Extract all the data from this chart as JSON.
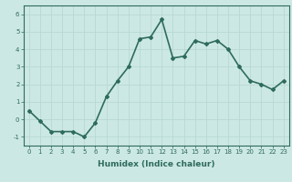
{
  "x": [
    0,
    1,
    2,
    3,
    4,
    5,
    6,
    7,
    8,
    9,
    10,
    11,
    12,
    13,
    14,
    15,
    16,
    17,
    18,
    19,
    20,
    21,
    22,
    23
  ],
  "y": [
    0.5,
    -0.1,
    -0.7,
    -0.7,
    -0.7,
    -1.0,
    -0.2,
    1.3,
    2.2,
    3.0,
    4.6,
    4.7,
    5.7,
    3.5,
    3.6,
    4.5,
    4.3,
    4.5,
    4.0,
    3.0,
    2.2,
    2.0,
    1.7,
    2.2
  ],
  "line_color": "#2e6b5e",
  "bg_color": "#cce8e4",
  "grid_color": "#b8d8d4",
  "xlabel": "Humidex (Indice chaleur)",
  "ylim": [
    -1.5,
    6.5
  ],
  "xlim": [
    -0.5,
    23.5
  ],
  "yticks": [
    -1,
    0,
    1,
    2,
    3,
    4,
    5,
    6
  ],
  "xticks": [
    0,
    1,
    2,
    3,
    4,
    5,
    6,
    7,
    8,
    9,
    10,
    11,
    12,
    13,
    14,
    15,
    16,
    17,
    18,
    19,
    20,
    21,
    22,
    23
  ],
  "marker": "D",
  "markersize": 2,
  "linewidth": 1.2,
  "tick_fontsize": 5,
  "xlabel_fontsize": 6.5
}
